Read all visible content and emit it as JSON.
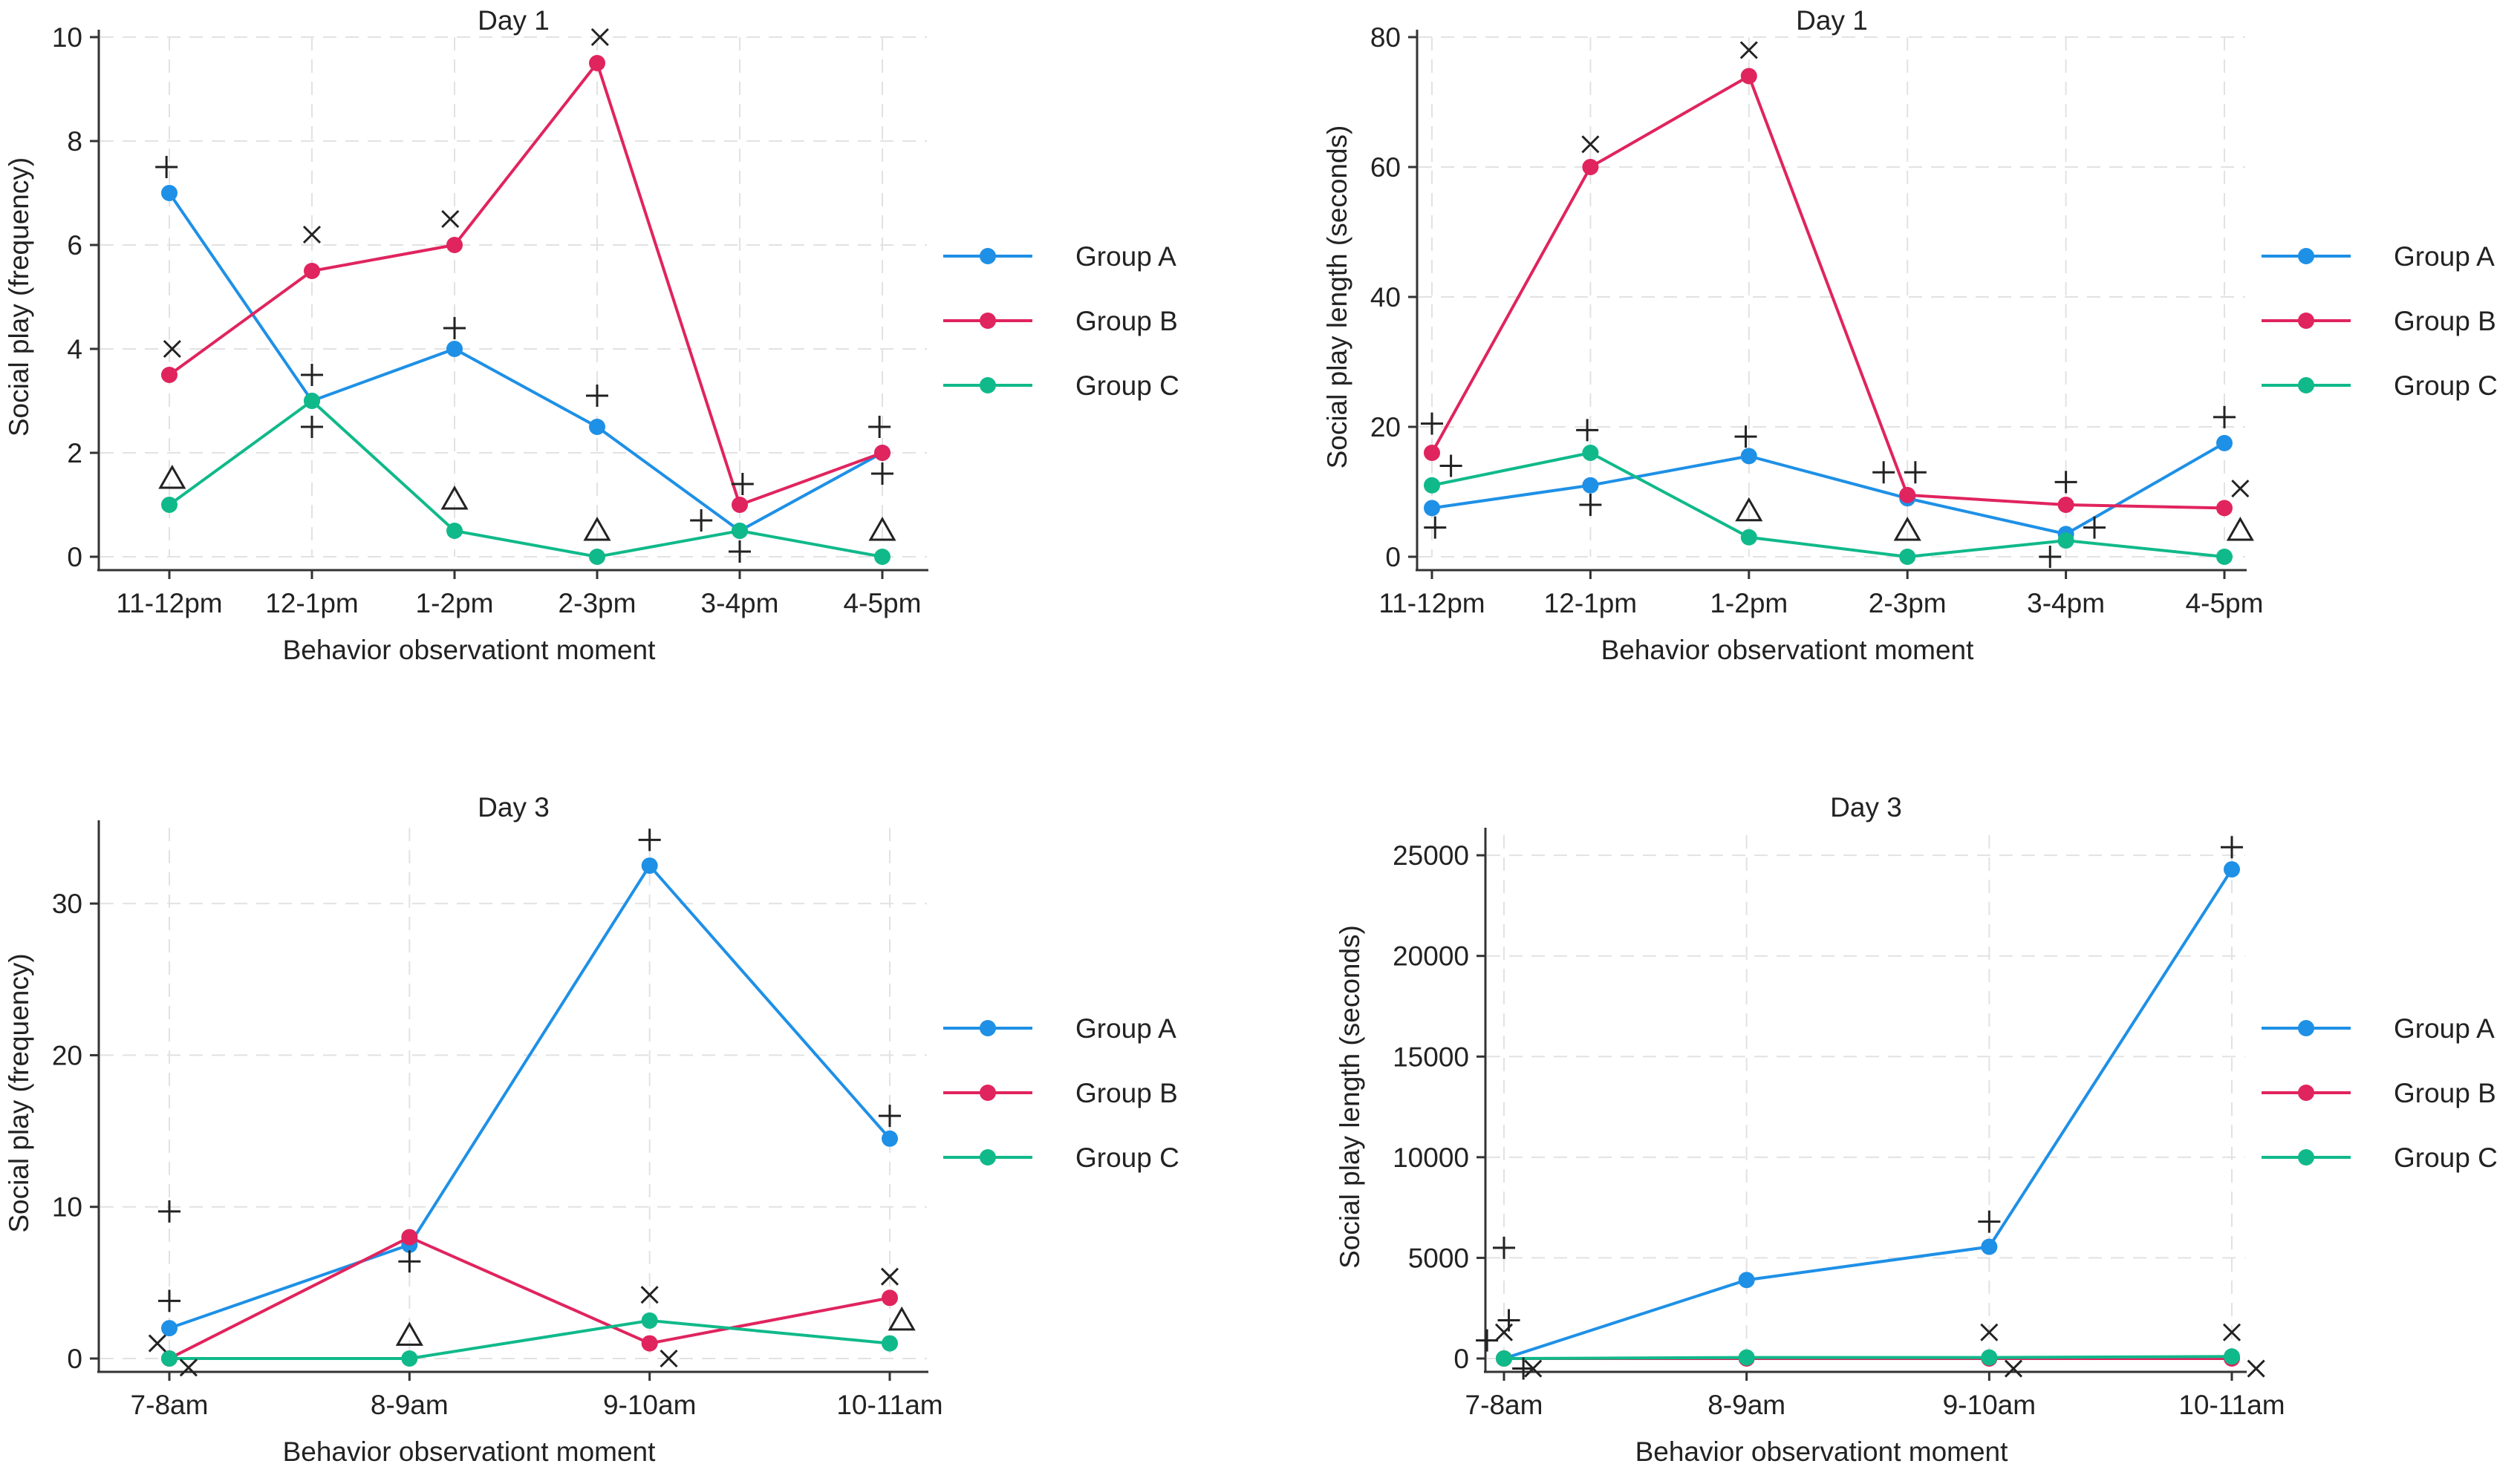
{
  "chart_data": [
    {
      "type": "line",
      "title": "Day 1",
      "xlabel": "Behavior observationt moment",
      "ylabel": "Social play (frequency)",
      "categories": [
        "11-12pm",
        "12-1pm",
        "1-2pm",
        "2-3pm",
        "3-4pm",
        "4-5pm"
      ],
      "ylim": [
        0,
        10
      ],
      "yticks": [
        0,
        2,
        4,
        6,
        8,
        10
      ],
      "ytick_labels": [
        "0",
        "2",
        "4",
        "6",
        "8",
        "10"
      ],
      "grid": true,
      "legend": "right",
      "series": [
        {
          "name": "Group A",
          "color": "#1E90E6",
          "values": [
            7,
            3,
            4,
            2.5,
            0.5,
            2
          ]
        },
        {
          "name": "Group B",
          "color": "#E0245E",
          "values": [
            3.5,
            5.5,
            6,
            9.5,
            1,
            2
          ]
        },
        {
          "name": "Group C",
          "color": "#10B98A",
          "values": [
            1,
            3,
            0.5,
            0,
            0.5,
            0
          ]
        }
      ],
      "markers": [
        {
          "symbol": "plus",
          "x": -0.02,
          "y": 7.5
        },
        {
          "symbol": "x",
          "x": 0.02,
          "y": 4
        },
        {
          "symbol": "triangle",
          "x": 0.02,
          "y": 1.5
        },
        {
          "symbol": "x",
          "x": 1,
          "y": 6.2
        },
        {
          "symbol": "plus",
          "x": 1,
          "y": 3.5
        },
        {
          "symbol": "plus",
          "x": 1,
          "y": 2.5
        },
        {
          "symbol": "x",
          "x": 1.97,
          "y": 6.5
        },
        {
          "symbol": "plus",
          "x": 2,
          "y": 4.4
        },
        {
          "symbol": "triangle",
          "x": 2,
          "y": 1.1
        },
        {
          "symbol": "x",
          "x": 3.02,
          "y": 10
        },
        {
          "symbol": "plus",
          "x": 3,
          "y": 3.1
        },
        {
          "symbol": "triangle",
          "x": 3,
          "y": 0.5
        },
        {
          "symbol": "plus",
          "x": 3.73,
          "y": 0.7
        },
        {
          "symbol": "plus",
          "x": 4.02,
          "y": 1.4
        },
        {
          "symbol": "plus",
          "x": 4,
          "y": 0.1
        },
        {
          "symbol": "plus",
          "x": 4.98,
          "y": 2.5
        },
        {
          "symbol": "plus",
          "x": 5,
          "y": 1.6
        },
        {
          "symbol": "triangle",
          "x": 5,
          "y": 0.5
        }
      ]
    },
    {
      "type": "line",
      "title": "Day 1",
      "xlabel": "Behavior observationt moment",
      "ylabel": "Social play length (seconds)",
      "categories": [
        "11-12pm",
        "12-1pm",
        "1-2pm",
        "2-3pm",
        "3-4pm",
        "4-5pm"
      ],
      "ylim": [
        0,
        80
      ],
      "yticks": [
        0,
        20,
        40,
        60,
        80
      ],
      "ytick_labels": [
        "0",
        "20",
        "40",
        "60",
        "80"
      ],
      "grid": true,
      "legend": "right",
      "series": [
        {
          "name": "Group A",
          "color": "#1E90E6",
          "values": [
            7.5,
            11,
            15.5,
            9,
            3.5,
            17.5
          ]
        },
        {
          "name": "Group B",
          "color": "#E0245E",
          "values": [
            16,
            60,
            74,
            9.5,
            8,
            7.5
          ]
        },
        {
          "name": "Group C",
          "color": "#10B98A",
          "values": [
            11,
            16,
            3,
            0,
            2.5,
            0
          ]
        }
      ],
      "markers": [
        {
          "symbol": "plus",
          "x": 0,
          "y": 20.5
        },
        {
          "symbol": "plus",
          "x": 0.12,
          "y": 14
        },
        {
          "symbol": "plus",
          "x": 0.02,
          "y": 4.5
        },
        {
          "symbol": "x",
          "x": 1,
          "y": 63.5
        },
        {
          "symbol": "plus",
          "x": 0.98,
          "y": 19.5
        },
        {
          "symbol": "plus",
          "x": 1,
          "y": 8
        },
        {
          "symbol": "x",
          "x": 2,
          "y": 78
        },
        {
          "symbol": "plus",
          "x": 1.98,
          "y": 18.5
        },
        {
          "symbol": "triangle",
          "x": 2,
          "y": 7
        },
        {
          "symbol": "plus",
          "x": 2.85,
          "y": 13
        },
        {
          "symbol": "plus",
          "x": 3.05,
          "y": 13
        },
        {
          "symbol": "triangle",
          "x": 3,
          "y": 4
        },
        {
          "symbol": "plus",
          "x": 4,
          "y": 11.5
        },
        {
          "symbol": "plus",
          "x": 3.9,
          "y": 0
        },
        {
          "symbol": "plus",
          "x": 4.18,
          "y": 4.5
        },
        {
          "symbol": "plus",
          "x": 5,
          "y": 21.5
        },
        {
          "symbol": "x",
          "x": 5.1,
          "y": 10.5
        },
        {
          "symbol": "triangle",
          "x": 5.1,
          "y": 4
        }
      ]
    },
    {
      "type": "line",
      "title": "Day 3",
      "xlabel": "Behavior observationt moment",
      "ylabel": "Social play (frequency)",
      "categories": [
        "7-8am",
        "8-9am",
        "9-10am",
        "10-11am"
      ],
      "ylim": [
        0,
        35
      ],
      "yticks": [
        0,
        10,
        20,
        30
      ],
      "ytick_labels": [
        "0",
        "10",
        "20",
        "30"
      ],
      "grid": true,
      "legend": "right",
      "series": [
        {
          "name": "Group A",
          "color": "#1E90E6",
          "values": [
            2,
            7.5,
            32.5,
            14.5
          ]
        },
        {
          "name": "Group B",
          "color": "#E0245E",
          "values": [
            0,
            8,
            1,
            4
          ]
        },
        {
          "name": "Group C",
          "color": "#10B98A",
          "values": [
            0,
            0,
            2.5,
            1
          ]
        }
      ],
      "markers": [
        {
          "symbol": "plus",
          "x": 0,
          "y": 3.8
        },
        {
          "symbol": "x",
          "x": -0.05,
          "y": 1
        },
        {
          "symbol": "x",
          "x": 0.08,
          "y": -0.6
        },
        {
          "symbol": "plus",
          "x": 0,
          "y": 9.7
        },
        {
          "symbol": "plus",
          "x": 1,
          "y": 6.4
        },
        {
          "symbol": "triangle",
          "x": 1,
          "y": 1.5
        },
        {
          "symbol": "plus",
          "x": 2,
          "y": 34.2
        },
        {
          "symbol": "x",
          "x": 2,
          "y": 4.2
        },
        {
          "symbol": "x",
          "x": 2.08,
          "y": 0
        },
        {
          "symbol": "plus",
          "x": 3,
          "y": 16
        },
        {
          "symbol": "x",
          "x": 3,
          "y": 5.4
        },
        {
          "symbol": "triangle",
          "x": 3.05,
          "y": 2.5
        }
      ]
    },
    {
      "type": "line",
      "title": "Day 3",
      "xlabel": "Behavior observationt moment",
      "ylabel": "Social play length (seconds)",
      "categories": [
        "7-8am",
        "8-9am",
        "9-10am",
        "10-11am"
      ],
      "ylim": [
        0,
        26000
      ],
      "yticks": [
        0,
        5000,
        10000,
        15000,
        20000,
        25000
      ],
      "ytick_labels": [
        "0",
        "5000",
        "10000",
        "15000",
        "20000",
        "25000"
      ],
      "grid": true,
      "legend": "right",
      "series": [
        {
          "name": "Group A",
          "color": "#1E90E6",
          "values": [
            0,
            3900,
            5550,
            24300
          ]
        },
        {
          "name": "Group B",
          "color": "#E0245E",
          "values": [
            0,
            0,
            0,
            0
          ]
        },
        {
          "name": "Group C",
          "color": "#10B98A",
          "values": [
            0,
            50,
            50,
            100
          ]
        }
      ],
      "markers": [
        {
          "symbol": "plus",
          "x": -0.07,
          "y": 900
        },
        {
          "symbol": "plus",
          "x": 0.02,
          "y": 1900
        },
        {
          "symbol": "plus",
          "x": 0.08,
          "y": -500
        },
        {
          "symbol": "plus",
          "x": 0,
          "y": 5500
        },
        {
          "symbol": "x",
          "x": 0,
          "y": 1300
        },
        {
          "symbol": "x",
          "x": 0.12,
          "y": -500
        },
        {
          "symbol": "plus",
          "x": 2,
          "y": 6800
        },
        {
          "symbol": "x",
          "x": 2,
          "y": 1300
        },
        {
          "symbol": "x",
          "x": 2.1,
          "y": -500
        },
        {
          "symbol": "plus",
          "x": 3,
          "y": 25400
        },
        {
          "symbol": "x",
          "x": 3,
          "y": 1300
        },
        {
          "symbol": "x",
          "x": 3.1,
          "y": -500
        }
      ]
    }
  ]
}
